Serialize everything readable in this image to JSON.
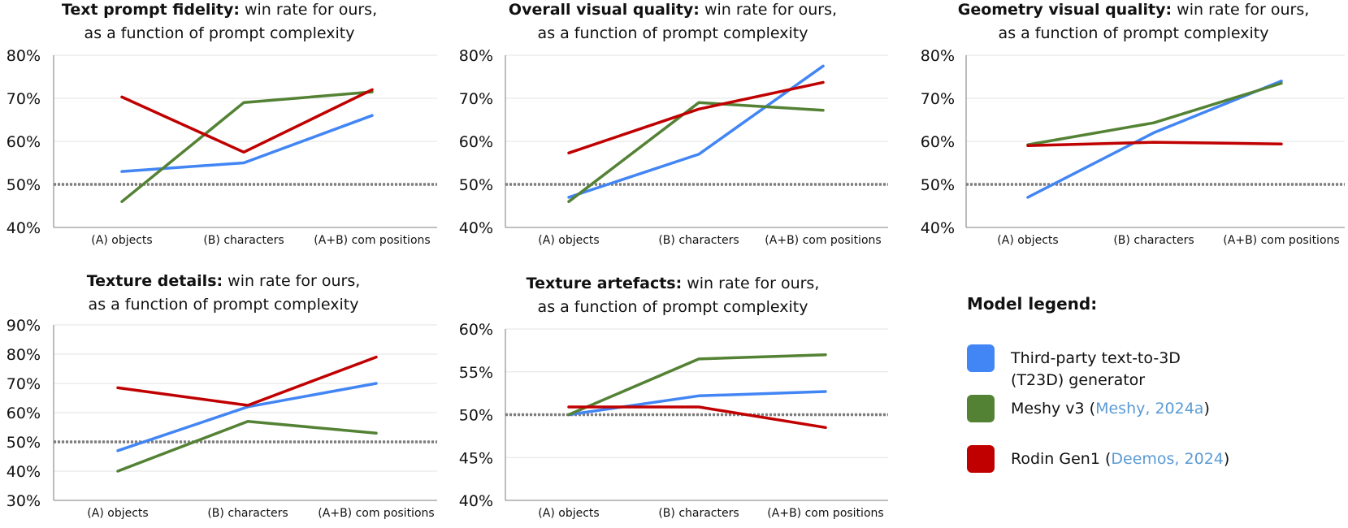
{
  "chart_data": [
    {
      "type": "line",
      "title_bold": "Text prompt fidelity:",
      "title_rest": " win rate for ours,",
      "subtitle": "as a function of prompt complexity",
      "categories": [
        "(A) objects",
        "(B) characters",
        "(A+B) com positions"
      ],
      "ylim": [
        0.4,
        0.8
      ],
      "yticks": [
        "40%",
        "50%",
        "60%",
        "70%",
        "80%"
      ],
      "ytick_values": [
        0.4,
        0.5,
        0.6,
        0.7,
        0.8
      ],
      "reference_line": 0.5,
      "grid": true,
      "series": [
        {
          "color": "#4285f4",
          "values": [
            0.53,
            0.55,
            0.66
          ]
        },
        {
          "color": "#548235",
          "values": [
            0.46,
            0.69,
            0.715
          ]
        },
        {
          "color": "#c00000",
          "values": [
            0.703,
            0.575,
            0.72
          ]
        }
      ]
    },
    {
      "type": "line",
      "title_bold": "Overall visual quality:",
      "title_rest": " win rate for ours,",
      "subtitle": "as a function of prompt complexity",
      "categories": [
        "(A) objects",
        "(B) characters",
        "(A+B) com positions"
      ],
      "ylim": [
        0.4,
        0.8
      ],
      "yticks": [
        "40%",
        "50%",
        "60%",
        "70%",
        "80%"
      ],
      "ytick_values": [
        0.4,
        0.5,
        0.6,
        0.7,
        0.8
      ],
      "reference_line": 0.5,
      "grid": true,
      "series": [
        {
          "color": "#4285f4",
          "values": [
            0.47,
            0.57,
            0.775
          ]
        },
        {
          "color": "#548235",
          "values": [
            0.46,
            0.69,
            0.672
          ]
        },
        {
          "color": "#c00000",
          "values": [
            0.573,
            0.675,
            0.737
          ]
        }
      ]
    },
    {
      "type": "line",
      "title_bold": "Geometry visual quality:",
      "title_rest": " win rate for ours,",
      "subtitle": "as a function of prompt complexity",
      "categories": [
        "(A) objects",
        "(B) characters",
        "(A+B) com positions"
      ],
      "ylim": [
        0.4,
        0.8
      ],
      "yticks": [
        "40%",
        "50%",
        "60%",
        "70%",
        "80%"
      ],
      "ytick_values": [
        0.4,
        0.5,
        0.6,
        0.7,
        0.8
      ],
      "reference_line": 0.5,
      "grid": true,
      "series": [
        {
          "color": "#4285f4",
          "values": [
            0.47,
            0.62,
            0.74
          ]
        },
        {
          "color": "#548235",
          "values": [
            0.592,
            0.643,
            0.735
          ]
        },
        {
          "color": "#c00000",
          "values": [
            0.59,
            0.598,
            0.594
          ]
        }
      ]
    },
    {
      "type": "line",
      "title_bold": "Texture details:",
      "title_rest": " win rate for ours,",
      "subtitle": "as a function of prompt complexity",
      "categories": [
        "(A) objects",
        "(B) characters",
        "(A+B) com positions"
      ],
      "ylim": [
        0.3,
        0.9
      ],
      "yticks": [
        "30%",
        "40%",
        "50%",
        "60%",
        "70%",
        "80%",
        "90%"
      ],
      "ytick_values": [
        0.3,
        0.4,
        0.5,
        0.6,
        0.7,
        0.8,
        0.9
      ],
      "reference_line": 0.5,
      "grid": true,
      "series": [
        {
          "color": "#4285f4",
          "values": [
            0.47,
            0.62,
            0.7
          ]
        },
        {
          "color": "#548235",
          "values": [
            0.4,
            0.57,
            0.53
          ]
        },
        {
          "color": "#c00000",
          "values": [
            0.685,
            0.625,
            0.79
          ]
        }
      ]
    },
    {
      "type": "line",
      "title_bold": "Texture artefacts:",
      "title_rest": " win rate for ours,",
      "subtitle": "as a function of prompt complexity",
      "categories": [
        "(A) objects",
        "(B) characters",
        "(A+B) com positions"
      ],
      "ylim": [
        0.4,
        0.6
      ],
      "yticks": [
        "40%",
        "45%",
        "50%",
        "55%",
        "60%"
      ],
      "ytick_values": [
        0.4,
        0.45,
        0.5,
        0.55,
        0.6
      ],
      "reference_line": 0.5,
      "grid": true,
      "series": [
        {
          "color": "#4285f4",
          "values": [
            0.5,
            0.522,
            0.527
          ]
        },
        {
          "color": "#548235",
          "values": [
            0.5,
            0.565,
            0.57
          ]
        },
        {
          "color": "#c00000",
          "values": [
            0.509,
            0.509,
            0.485
          ]
        }
      ]
    }
  ],
  "legend": {
    "title": "Model legend:",
    "items": [
      {
        "color": "#4285f4",
        "line1": "Third-party text-to-3D",
        "line2": "(T23D) generator",
        "label": "",
        "cite": "",
        "close": ""
      },
      {
        "color": "#548235",
        "line1": "",
        "line2": "",
        "label": "Meshy v3 (",
        "cite": "Meshy, 2024a",
        "close": ")"
      },
      {
        "color": "#c00000",
        "line1": "",
        "line2": "",
        "label": "Rodin Gen1 (",
        "cite": "Deemos, 2024",
        "close": ")"
      }
    ]
  }
}
